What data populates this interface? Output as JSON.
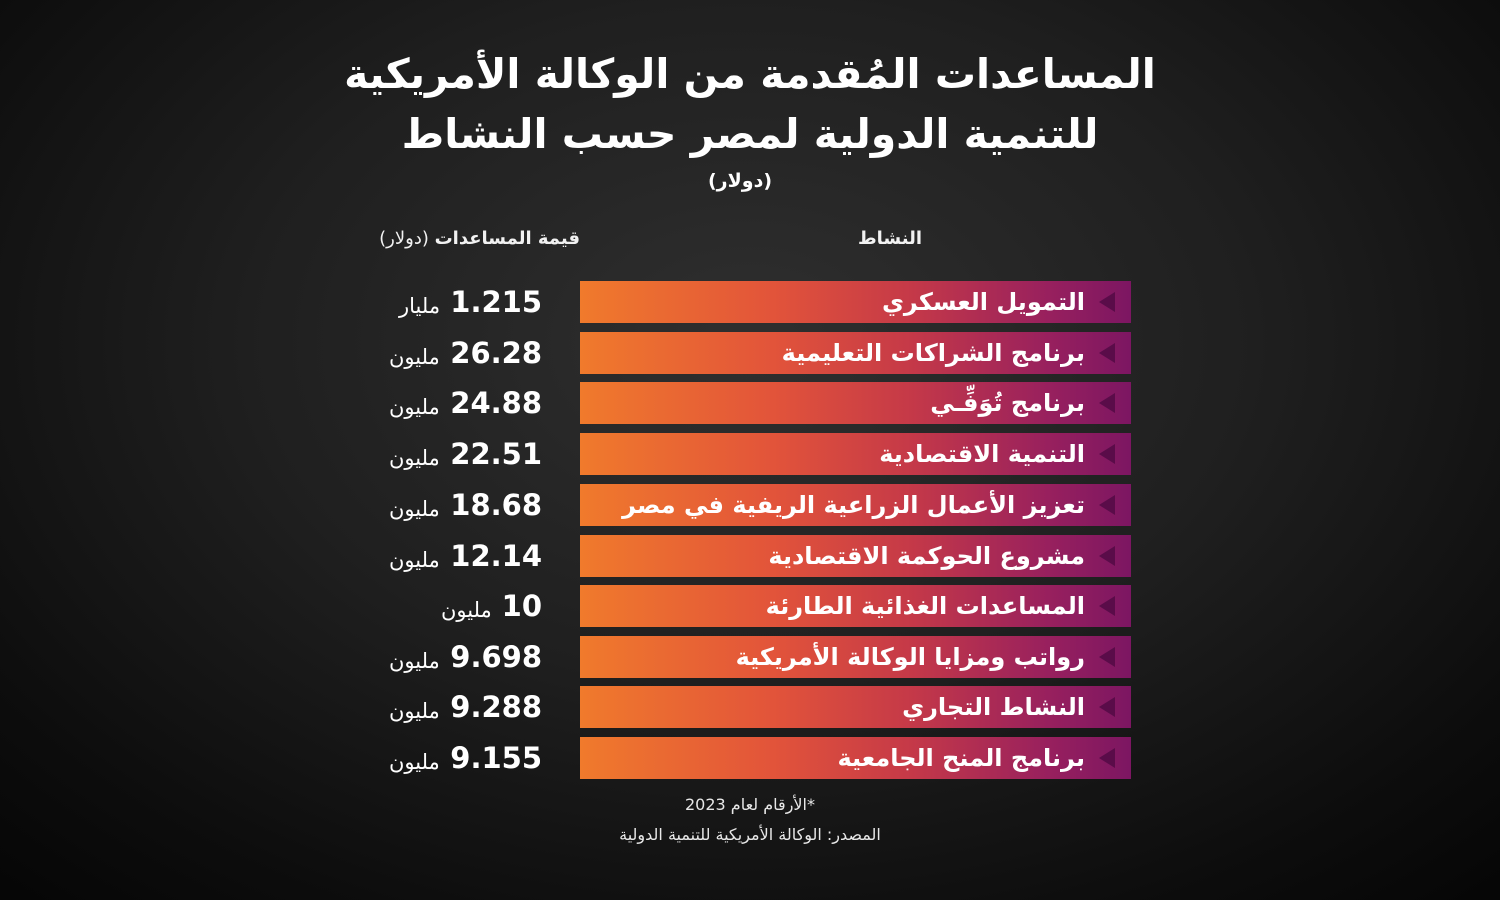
{
  "title_line1": "المساعدات المُقدمة من الوكالة الأمريكية",
  "title_line2": "للتنمية الدولية لمصر حسب النشاط",
  "unit_label": "(دولار)",
  "header_activity": "النشاط",
  "header_value_bold": "قيمة المساعدات",
  "header_value_unit": "(دولار)",
  "footnote": "*الأرقام لعام 2023",
  "source": "المصدر: الوكالة الأمريكية للتنمية الدولية",
  "colors": {
    "bar_gradient_start": "#f07a2c",
    "bar_gradient_end": "#7c1662",
    "arrow": "#5a0c49",
    "text": "#ffffff"
  },
  "chart_data": {
    "type": "table",
    "rows": [
      {
        "activity": "التمويل العسكري",
        "value": "1.215",
        "unit": "مليار"
      },
      {
        "activity": "برنامج الشراكات التعليمية",
        "value": "26.28",
        "unit": "مليون"
      },
      {
        "activity": "برنامج تُوَفِّـي",
        "value": "24.88",
        "unit": "مليون"
      },
      {
        "activity": "التنمية الاقتصادية",
        "value": "22.51",
        "unit": "مليون"
      },
      {
        "activity": "تعزيز الأعمال الزراعية الريفية في مصر",
        "value": "18.68",
        "unit": "مليون"
      },
      {
        "activity": "مشروع الحوكمة الاقتصادية",
        "value": "12.14",
        "unit": "مليون"
      },
      {
        "activity": "المساعدات الغذائية الطارئة",
        "value": "10",
        "unit": "مليون"
      },
      {
        "activity": "رواتب ومزايا الوكالة الأمريكية",
        "value": "9.698",
        "unit": "مليون"
      },
      {
        "activity": "النشاط التجاري",
        "value": "9.288",
        "unit": "مليون"
      },
      {
        "activity": "برنامج المنح الجامعية",
        "value": "9.155",
        "unit": "مليون"
      }
    ]
  }
}
